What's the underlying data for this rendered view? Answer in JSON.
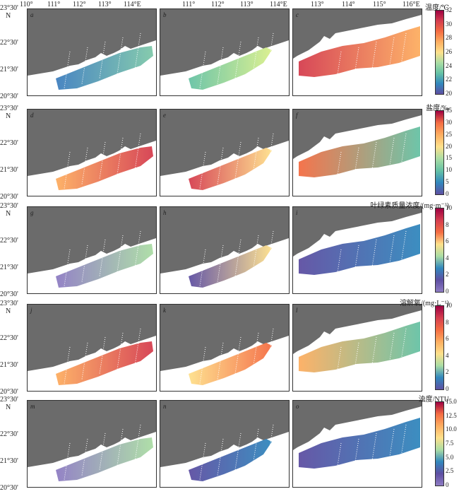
{
  "lon_labels_left": [
    "110°",
    "111°",
    "112°",
    "113°",
    "114°E"
  ],
  "lon_labels_mid": [
    "111°",
    "112°",
    "113°",
    "114°E"
  ],
  "lon_labels_right": [
    "113°",
    "114°",
    "115°",
    "116°E"
  ],
  "lat_labels": [
    "23°30'",
    "22°30'",
    "21°30'",
    "20°30'"
  ],
  "north_label": "N",
  "panel_labels": [
    "a",
    "b",
    "c",
    "d",
    "e",
    "f",
    "g",
    "h",
    "i",
    "j",
    "k",
    "l",
    "m",
    "n",
    "o"
  ],
  "colorbars": [
    {
      "title": "温度/℃",
      "ticks": [
        "32",
        "30",
        "28",
        "26",
        "24",
        "22",
        "20"
      ],
      "gradient": [
        "#9e0142",
        "#d53e4f",
        "#f46d43",
        "#fdae61",
        "#fee08b",
        "#abdda4",
        "#66c2a5",
        "#3288bd",
        "#5e4fa2"
      ]
    },
    {
      "title": "盐度/‰",
      "ticks": [
        "35",
        "30",
        "25",
        "20",
        "15",
        "10",
        "5",
        "0"
      ],
      "gradient": [
        "#9e0142",
        "#f46d43",
        "#fdae61",
        "#fee08b",
        "#abdda4",
        "#66c2a5",
        "#3288bd",
        "#5e4fa2"
      ]
    },
    {
      "title": "叶绿素质量浓度/(mg·m⁻³)",
      "ticks": [
        "10",
        "8",
        "6",
        "4",
        "2",
        "0"
      ],
      "gradient": [
        "#9e0142",
        "#d53e4f",
        "#f46d43",
        "#fee08b",
        "#abdda4",
        "#3288bd",
        "#5e4fa2",
        "#8e7cc3"
      ]
    },
    {
      "title": "溶解氧/(mg·L⁻¹)",
      "ticks": [
        "10",
        "8",
        "6",
        "4",
        "2",
        "0"
      ],
      "gradient": [
        "#9e0142",
        "#d53e4f",
        "#f46d43",
        "#fdae61",
        "#fee08b",
        "#abdda4",
        "#3288bd",
        "#5e4fa2"
      ]
    },
    {
      "title": "浊度/NTU",
      "ticks": [
        "15.0",
        "12.5",
        "10.0",
        "7.5",
        "5.0",
        "2.5",
        "0"
      ],
      "gradient": [
        "#9e0142",
        "#f46d43",
        "#fdae61",
        "#fee08b",
        "#abdda4",
        "#3288bd",
        "#5e4fa2",
        "#8e7cc3"
      ]
    }
  ],
  "panel_colors": [
    [
      "#3f7fbf",
      "#7fc8a9"
    ],
    [
      "#66c2a5",
      "#d9ef8b"
    ],
    [
      "#d53e4f",
      "#fdae61"
    ],
    [
      "#fdae61",
      "#d53e4f"
    ],
    [
      "#d53e4f",
      "#fee08b"
    ],
    [
      "#f46d43",
      "#66c2a5"
    ],
    [
      "#8e7cc3",
      "#abdda4"
    ],
    [
      "#5e4fa2",
      "#fee08b"
    ],
    [
      "#5e4fa2",
      "#3288bd"
    ],
    [
      "#fdae61",
      "#d53e4f"
    ],
    [
      "#fee08b",
      "#f46d43"
    ],
    [
      "#fdae61",
      "#66c2a5"
    ],
    [
      "#8e7cc3",
      "#abdda4"
    ],
    [
      "#5e4fa2",
      "#3288bd"
    ],
    [
      "#5e4fa2",
      "#3288bd"
    ]
  ]
}
